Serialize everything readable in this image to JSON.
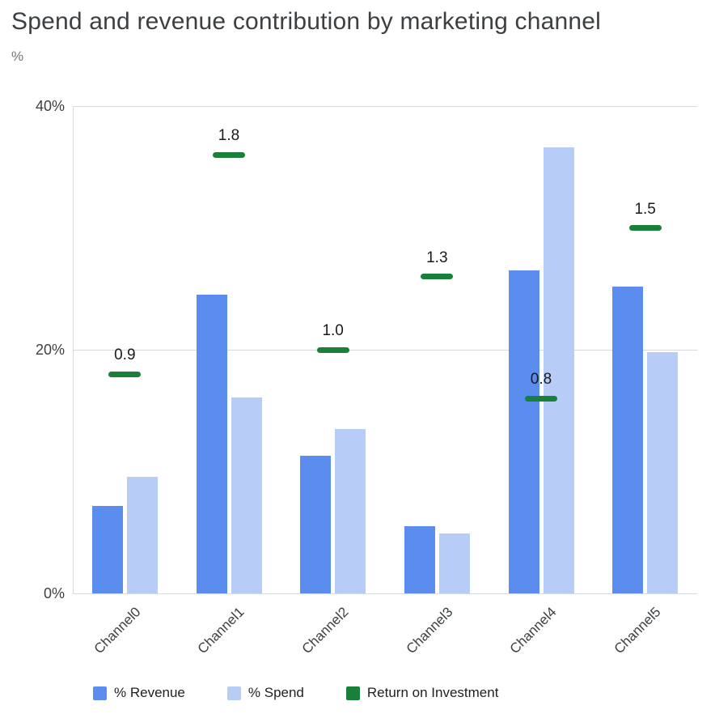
{
  "chart_data": {
    "type": "bar",
    "title": "Spend and revenue contribution by marketing channel",
    "ylabel": "%",
    "categories": [
      "Channel0",
      "Channel1",
      "Channel2",
      "Channel3",
      "Channel4",
      "Channel5"
    ],
    "series": [
      {
        "name": "% Revenue",
        "type": "bar",
        "color": "#5b8def",
        "values": [
          7.2,
          24.5,
          11.3,
          5.5,
          26.5,
          25.2
        ]
      },
      {
        "name": "% Spend",
        "type": "bar",
        "color": "#b7cdf8",
        "values": [
          9.6,
          16.1,
          13.5,
          4.9,
          36.6,
          19.8
        ]
      },
      {
        "name": "Return on Investment",
        "type": "marker",
        "color": "#188038",
        "axis_scale": 20,
        "values": [
          0.9,
          1.8,
          1.0,
          1.3,
          0.8,
          1.5
        ],
        "labels": [
          "0.9",
          "1.8",
          "1.0",
          "1.3",
          "0.8",
          "1.5"
        ]
      }
    ],
    "ylim": [
      0,
      40
    ],
    "yticks": [
      {
        "value": 0,
        "label": "0%"
      },
      {
        "value": 20,
        "label": "20%"
      },
      {
        "value": 40,
        "label": "40%"
      }
    ],
    "grid": true,
    "legend_position": "bottom"
  }
}
